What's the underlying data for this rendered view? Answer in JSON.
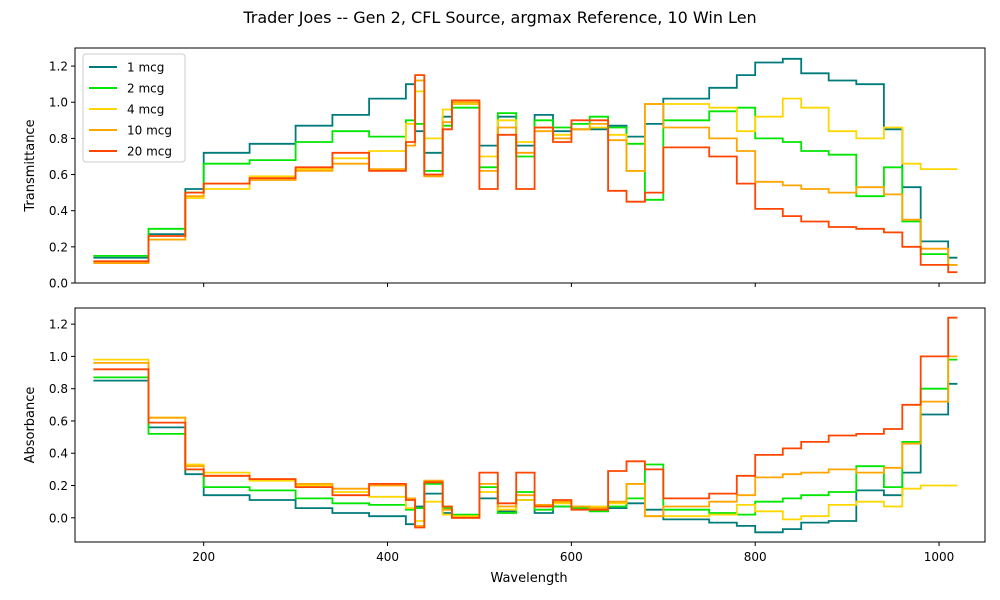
{
  "chart_data": {
    "type": "line",
    "title": "Trader Joes -- Gen 2, CFL Source, argmax Reference, 10 Win Len",
    "xlabel": "Wavelength",
    "xlim": [
      60,
      1050
    ],
    "xticks": [
      200,
      400,
      600,
      800,
      1000
    ],
    "drawstyle": "steps",
    "legend": {
      "placement": "top-left",
      "entries": [
        "1 mcg",
        "2 mcg",
        "4 mcg",
        "10 mcg",
        "20 mcg"
      ]
    },
    "colors": {
      "1 mcg": "#007b7b",
      "2 mcg": "#00e600",
      "4 mcg": "#ffd700",
      "10 mcg": "#ffa500",
      "20 mcg": "#ff4500"
    },
    "panels": [
      {
        "ylabel": "Transmittance",
        "ylim": [
          0,
          1.3
        ],
        "yticks": [
          0.0,
          0.2,
          0.4,
          0.6,
          0.8,
          1.0,
          1.2
        ],
        "x": [
          80,
          140,
          180,
          200,
          250,
          300,
          340,
          380,
          420,
          430,
          440,
          460,
          470,
          500,
          520,
          540,
          560,
          580,
          600,
          620,
          640,
          660,
          680,
          700,
          750,
          780,
          800,
          830,
          850,
          880,
          910,
          940,
          960,
          980,
          1010
        ],
        "series": [
          {
            "name": "1 mcg",
            "values": [
              0.14,
              0.27,
              0.52,
              0.72,
              0.77,
              0.87,
              0.93,
              1.02,
              1.1,
              0.84,
              0.72,
              0.92,
              0.99,
              0.76,
              0.92,
              0.76,
              0.93,
              0.84,
              0.85,
              0.85,
              0.87,
              0.81,
              0.88,
              1.02,
              1.08,
              1.15,
              1.22,
              1.24,
              1.16,
              1.12,
              1.1,
              0.85,
              0.53,
              0.23,
              0.14
            ]
          },
          {
            "name": "2 mcg",
            "values": [
              0.15,
              0.3,
              0.5,
              0.66,
              0.68,
              0.78,
              0.84,
              0.81,
              0.9,
              0.88,
              0.62,
              0.87,
              0.97,
              0.64,
              0.94,
              0.7,
              0.9,
              0.86,
              0.88,
              0.92,
              0.86,
              0.77,
              0.46,
              0.9,
              0.95,
              0.97,
              0.8,
              0.78,
              0.73,
              0.71,
              0.48,
              0.64,
              0.34,
              0.16,
              0.1
            ]
          },
          {
            "name": "4 mcg",
            "values": [
              0.12,
              0.24,
              0.47,
              0.52,
              0.59,
              0.63,
              0.69,
              0.73,
              0.88,
              1.06,
              0.8,
              0.96,
              0.99,
              0.7,
              0.9,
              0.78,
              0.86,
              0.82,
              0.85,
              0.86,
              0.82,
              0.62,
              0.99,
              0.99,
              0.97,
              0.84,
              0.92,
              1.02,
              0.97,
              0.84,
              0.8,
              0.86,
              0.66,
              0.63,
              0.63
            ]
          },
          {
            "name": "10 mcg",
            "values": [
              0.11,
              0.24,
              0.48,
              0.55,
              0.57,
              0.62,
              0.66,
              0.63,
              0.76,
              1.12,
              0.59,
              0.89,
              1.0,
              0.62,
              0.86,
              0.72,
              0.84,
              0.8,
              0.85,
              0.88,
              0.79,
              0.62,
              0.99,
              0.86,
              0.8,
              0.73,
              0.56,
              0.54,
              0.52,
              0.5,
              0.53,
              0.49,
              0.35,
              0.19,
              0.1
            ]
          },
          {
            "name": "20 mcg",
            "values": [
              0.12,
              0.26,
              0.5,
              0.55,
              0.58,
              0.64,
              0.72,
              0.62,
              0.78,
              1.15,
              0.6,
              0.85,
              1.01,
              0.52,
              0.82,
              0.52,
              0.86,
              0.78,
              0.9,
              0.9,
              0.51,
              0.45,
              0.5,
              0.75,
              0.7,
              0.55,
              0.41,
              0.37,
              0.34,
              0.31,
              0.3,
              0.28,
              0.2,
              0.1,
              0.06
            ]
          }
        ]
      },
      {
        "ylabel": "Absorbance",
        "ylim": [
          -0.15,
          1.3
        ],
        "yticks": [
          0.0,
          0.2,
          0.4,
          0.6,
          0.8,
          1.0,
          1.2
        ],
        "x": [
          80,
          140,
          180,
          200,
          250,
          300,
          340,
          380,
          420,
          430,
          440,
          460,
          470,
          500,
          520,
          540,
          560,
          580,
          600,
          620,
          640,
          660,
          680,
          700,
          750,
          780,
          800,
          830,
          850,
          880,
          910,
          940,
          960,
          980,
          1010
        ],
        "series": [
          {
            "name": "1 mcg",
            "values": [
              0.85,
              0.56,
              0.27,
              0.14,
              0.11,
              0.06,
              0.03,
              0.01,
              -0.04,
              0.07,
              0.15,
              0.03,
              0.01,
              0.12,
              0.04,
              0.11,
              0.03,
              0.07,
              0.06,
              0.06,
              0.06,
              0.09,
              0.05,
              -0.01,
              -0.03,
              -0.05,
              -0.09,
              -0.07,
              -0.03,
              -0.02,
              0.17,
              0.14,
              0.28,
              0.64,
              0.83
            ]
          },
          {
            "name": "2 mcg",
            "values": [
              0.87,
              0.52,
              0.3,
              0.19,
              0.17,
              0.12,
              0.09,
              0.08,
              0.05,
              0.06,
              0.21,
              0.06,
              0.02,
              0.19,
              0.03,
              0.16,
              0.05,
              0.07,
              0.06,
              0.04,
              0.07,
              0.12,
              0.33,
              0.05,
              0.03,
              0.02,
              0.1,
              0.12,
              0.14,
              0.16,
              0.32,
              0.19,
              0.47,
              0.8,
              0.98
            ]
          },
          {
            "name": "4 mcg",
            "values": [
              0.98,
              0.62,
              0.33,
              0.28,
              0.23,
              0.2,
              0.16,
              0.13,
              0.06,
              -0.02,
              0.1,
              0.02,
              0.01,
              0.16,
              0.05,
              0.11,
              0.07,
              0.09,
              0.07,
              0.07,
              0.09,
              0.21,
              0.01,
              0.01,
              0.02,
              0.08,
              0.04,
              -0.01,
              0.01,
              0.08,
              0.1,
              0.07,
              0.18,
              0.2,
              0.2
            ]
          },
          {
            "name": "10 mcg",
            "values": [
              0.96,
              0.62,
              0.32,
              0.26,
              0.24,
              0.21,
              0.18,
              0.2,
              0.12,
              -0.05,
              0.23,
              0.05,
              0.0,
              0.21,
              0.07,
              0.14,
              0.08,
              0.1,
              0.07,
              0.06,
              0.1,
              0.21,
              0.01,
              0.07,
              0.1,
              0.14,
              0.25,
              0.27,
              0.28,
              0.3,
              0.28,
              0.31,
              0.46,
              0.72,
              1.0
            ]
          },
          {
            "name": "20 mcg",
            "values": [
              0.92,
              0.59,
              0.3,
              0.26,
              0.24,
              0.19,
              0.14,
              0.21,
              0.11,
              -0.06,
              0.22,
              0.07,
              0.0,
              0.28,
              0.09,
              0.28,
              0.07,
              0.11,
              0.05,
              0.05,
              0.29,
              0.35,
              0.3,
              0.12,
              0.15,
              0.26,
              0.39,
              0.43,
              0.47,
              0.51,
              0.52,
              0.55,
              0.7,
              1.0,
              1.24
            ]
          }
        ]
      }
    ]
  }
}
